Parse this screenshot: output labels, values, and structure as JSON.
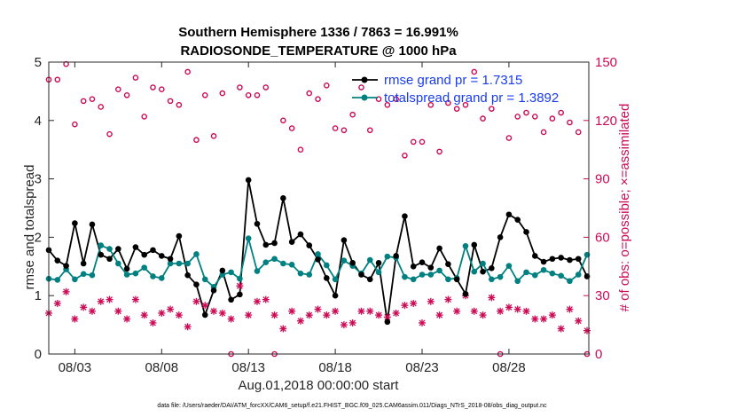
{
  "chart_data": {
    "type": "line",
    "title": "Southern Hemisphere 1336 / 7863 = 16.991%",
    "subtitle": "RADIOSONDE_TEMPERATURE @ 1000 hPa",
    "xlabel": "Aug.01,2018 00:00:00 start",
    "ylabel": "rmse and totalspread",
    "y2label": "# of obs: o=possible; ×=assimilated",
    "footnote": "data file: /Users/raeder/DAI/ATM_forcXX/CAM6_setup/f.e21.FHIST_BGC.f09_025.CAM6assim.011/Diags_NTrS_2018-08/obs_diag_output.nc",
    "xlim": [
      1.5,
      32.6
    ],
    "ylim": [
      0,
      5
    ],
    "y2lim": [
      0,
      150
    ],
    "x_ticks": [
      3,
      8,
      13,
      18,
      23,
      28
    ],
    "x_tick_labels": [
      "08/03",
      "08/08",
      "08/13",
      "08/18",
      "08/23",
      "08/28"
    ],
    "y_ticks": [
      0,
      1,
      2,
      3,
      4,
      5
    ],
    "y2_ticks": [
      0,
      30,
      60,
      90,
      120,
      150
    ],
    "legend": {
      "position": "top-right",
      "entries": [
        "rmse grand pr = 1.7315",
        "totalspread grand pr = 1.3892"
      ]
    },
    "colors": {
      "rmse": "#000000",
      "totalspread": "#008080",
      "counts": "#cc0a55",
      "legend_text": "#1a3cf0"
    },
    "series": [
      {
        "name": "rmse",
        "axis": "left",
        "marker": "circle-filled",
        "x": [
          1.5,
          2.0,
          2.5,
          3.0,
          3.5,
          4.0,
          4.5,
          5.0,
          5.5,
          6.0,
          6.5,
          7.0,
          7.5,
          8.0,
          8.5,
          9.0,
          9.5,
          10.0,
          10.5,
          11.0,
          11.5,
          12.0,
          12.5,
          13.0,
          13.5,
          14.0,
          14.5,
          15.0,
          15.5,
          16.0,
          16.5,
          17.0,
          17.5,
          18.0,
          18.5,
          19.0,
          19.5,
          20.0,
          20.5,
          21.0,
          21.5,
          22.0,
          22.5,
          23.0,
          23.5,
          24.0,
          24.5,
          25.0,
          25.5,
          26.0,
          26.5,
          27.0,
          27.5,
          28.0,
          28.5,
          29.0,
          29.5,
          30.0,
          30.5,
          31.0,
          31.5,
          32.0,
          32.5
        ],
        "values": [
          1.78,
          1.6,
          1.51,
          2.24,
          1.55,
          2.22,
          1.7,
          1.63,
          1.8,
          1.46,
          1.83,
          1.7,
          1.78,
          1.68,
          1.63,
          2.02,
          1.35,
          1.19,
          0.67,
          1.09,
          1.43,
          0.93,
          1.02,
          2.98,
          2.23,
          1.87,
          1.9,
          2.67,
          1.92,
          2.05,
          1.86,
          1.62,
          1.3,
          1.0,
          1.95,
          1.56,
          1.36,
          1.28,
          1.56,
          0.55,
          1.68,
          2.36,
          1.5,
          1.57,
          1.48,
          1.81,
          1.54,
          1.28,
          1.03,
          1.87,
          1.41,
          1.47,
          2.0,
          2.39,
          2.3,
          2.09,
          1.68,
          1.58,
          1.63,
          1.65,
          1.61,
          1.63,
          1.33
        ]
      },
      {
        "name": "totalspread",
        "axis": "left",
        "marker": "circle-filled",
        "x": [
          1.5,
          2.0,
          2.5,
          3.0,
          3.5,
          4.0,
          4.5,
          5.0,
          5.5,
          6.0,
          6.5,
          7.0,
          7.5,
          8.0,
          8.5,
          9.0,
          9.5,
          10.0,
          10.5,
          11.0,
          11.5,
          12.0,
          12.5,
          13.0,
          13.5,
          14.0,
          14.5,
          15.0,
          15.5,
          16.0,
          16.5,
          17.0,
          17.5,
          18.0,
          18.5,
          19.0,
          19.5,
          20.0,
          20.5,
          21.0,
          21.5,
          22.0,
          22.5,
          23.0,
          23.5,
          24.0,
          24.5,
          25.0,
          25.5,
          26.0,
          26.5,
          27.0,
          27.5,
          28.0,
          28.5,
          29.0,
          29.5,
          30.0,
          30.5,
          31.0,
          31.5,
          32.0,
          32.5
        ],
        "values": [
          1.29,
          1.27,
          1.45,
          1.28,
          1.37,
          1.35,
          1.86,
          1.8,
          1.55,
          1.36,
          1.38,
          1.48,
          1.33,
          1.3,
          1.55,
          1.55,
          1.55,
          1.71,
          1.28,
          1.15,
          1.36,
          1.4,
          1.29,
          1.98,
          1.42,
          1.57,
          1.63,
          1.55,
          1.53,
          1.38,
          1.36,
          1.71,
          1.52,
          1.28,
          1.6,
          1.51,
          1.38,
          1.61,
          1.4,
          1.67,
          1.65,
          1.32,
          1.28,
          1.36,
          1.36,
          1.43,
          1.28,
          1.3,
          1.85,
          1.41,
          1.55,
          1.28,
          1.32,
          1.51,
          1.25,
          1.4,
          1.35,
          1.44,
          1.38,
          1.34,
          1.25,
          1.36,
          1.7
        ]
      },
      {
        "name": "possible",
        "axis": "right",
        "marker": "circle-open",
        "x": [
          1.5,
          2.0,
          2.5,
          3.0,
          3.5,
          4.0,
          4.5,
          5.0,
          5.5,
          6.0,
          6.5,
          7.0,
          7.5,
          8.0,
          8.5,
          9.0,
          9.5,
          10.0,
          10.5,
          11.0,
          11.5,
          12.0,
          12.5,
          13.0,
          13.5,
          14.0,
          14.5,
          15.0,
          15.5,
          16.0,
          16.5,
          17.0,
          17.5,
          18.0,
          18.5,
          19.0,
          19.5,
          20.0,
          20.5,
          21.0,
          21.5,
          22.0,
          22.5,
          23.0,
          23.5,
          24.0,
          24.5,
          25.0,
          25.5,
          26.0,
          26.5,
          27.0,
          27.5,
          28.0,
          28.5,
          29.0,
          29.5,
          30.0,
          30.5,
          31.0,
          31.5,
          32.0,
          32.5
        ],
        "values": [
          141,
          141,
          149,
          118,
          130,
          131,
          127,
          113,
          136,
          133,
          142,
          122,
          137,
          136,
          130,
          128,
          145,
          110,
          133,
          112,
          134,
          0,
          137,
          133,
          133,
          137,
          0,
          120,
          116,
          105,
          134,
          131,
          138,
          116,
          115,
          123,
          137,
          115,
          131,
          128,
          131,
          102,
          109,
          109,
          128,
          104,
          129,
          126,
          128,
          145,
          121,
          126,
          0,
          111,
          122,
          124,
          122,
          114,
          121,
          124,
          119,
          114,
          0
        ]
      },
      {
        "name": "assimilated",
        "axis": "right",
        "marker": "asterisk",
        "x": [
          1.5,
          2.0,
          2.5,
          3.0,
          3.5,
          4.0,
          4.5,
          5.0,
          5.5,
          6.0,
          6.5,
          7.0,
          7.5,
          8.0,
          8.5,
          9.0,
          9.5,
          10.0,
          10.5,
          11.0,
          11.5,
          12.0,
          12.5,
          13.0,
          13.5,
          14.0,
          14.5,
          15.0,
          15.5,
          16.0,
          16.5,
          17.0,
          17.5,
          18.0,
          18.5,
          19.0,
          19.5,
          20.0,
          20.5,
          21.0,
          21.5,
          22.0,
          22.5,
          23.0,
          23.5,
          24.0,
          24.5,
          25.0,
          25.5,
          26.0,
          26.5,
          27.0,
          27.5,
          28.0,
          28.5,
          29.0,
          29.5,
          30.0,
          30.5,
          31.0,
          31.5,
          32.0,
          32.5
        ],
        "values": [
          21,
          26,
          32,
          18,
          24,
          22,
          27,
          28,
          22,
          18,
          28,
          20,
          16,
          21,
          23,
          20,
          14,
          27,
          25,
          22,
          21,
          18,
          35,
          20,
          27,
          28,
          20,
          13,
          22,
          17,
          20,
          23,
          20,
          22,
          15,
          16,
          22,
          22,
          20,
          19,
          21,
          25,
          26,
          16,
          27,
          20,
          28,
          22,
          30,
          22,
          20,
          29,
          22,
          24,
          23,
          22,
          18,
          18,
          20,
          13,
          23,
          17,
          12
        ]
      }
    ]
  }
}
